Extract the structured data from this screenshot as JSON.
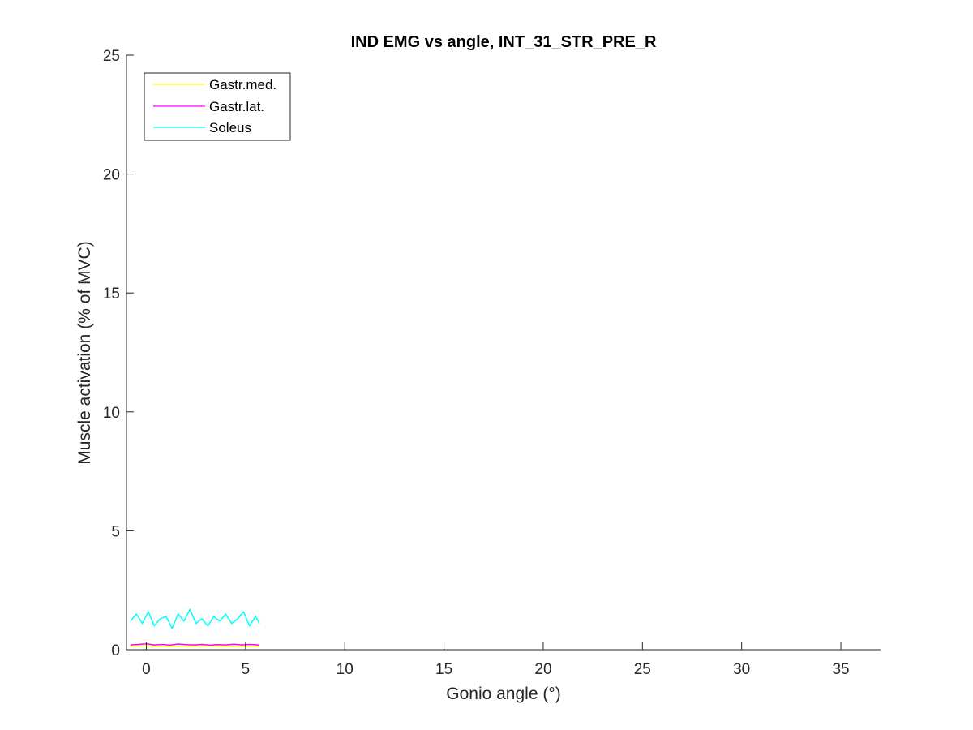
{
  "chart_data": {
    "type": "line",
    "title": "IND EMG vs angle, INT_31_STR_PRE_R",
    "xlabel": "Gonio angle (°)",
    "ylabel": "Muscle activation (% of MVC)",
    "xlim": [
      -1,
      37
    ],
    "ylim": [
      0,
      25
    ],
    "xticks": [
      0,
      5,
      10,
      15,
      20,
      25,
      30,
      35
    ],
    "yticks": [
      0,
      5,
      10,
      15,
      20,
      25
    ],
    "xtick_labels": [
      "0",
      "5",
      "10",
      "15",
      "20",
      "25",
      "30",
      "35"
    ],
    "ytick_labels": [
      "0",
      "5",
      "10",
      "15",
      "20",
      "25"
    ],
    "grid": false,
    "legend_position": "top-left",
    "series": [
      {
        "name": "Gastr.med.",
        "color": "#FFFF00",
        "x": [
          -0.8,
          0.0,
          1.0,
          2.0,
          3.0,
          4.0,
          5.0,
          5.7
        ],
        "values": [
          0.15,
          0.16,
          0.14,
          0.15,
          0.16,
          0.15,
          0.14,
          0.15
        ]
      },
      {
        "name": "Gastr.lat.",
        "color": "#FF00FF",
        "x": [
          -0.8,
          -0.4,
          0.0,
          0.4,
          0.8,
          1.2,
          1.6,
          2.0,
          2.4,
          2.8,
          3.2,
          3.6,
          4.0,
          4.4,
          4.8,
          5.2,
          5.7
        ],
        "values": [
          0.2,
          0.22,
          0.25,
          0.2,
          0.22,
          0.19,
          0.24,
          0.21,
          0.2,
          0.22,
          0.19,
          0.21,
          0.2,
          0.23,
          0.2,
          0.22,
          0.2
        ]
      },
      {
        "name": "Soleus",
        "color": "#00FFFF",
        "x": [
          -0.8,
          -0.5,
          -0.2,
          0.1,
          0.4,
          0.7,
          1.0,
          1.3,
          1.6,
          1.9,
          2.2,
          2.5,
          2.8,
          3.1,
          3.4,
          3.7,
          4.0,
          4.3,
          4.6,
          4.9,
          5.2,
          5.5,
          5.7
        ],
        "values": [
          1.2,
          1.5,
          1.1,
          1.6,
          1.0,
          1.3,
          1.4,
          0.9,
          1.5,
          1.2,
          1.7,
          1.1,
          1.3,
          1.0,
          1.4,
          1.2,
          1.5,
          1.1,
          1.3,
          1.6,
          1.0,
          1.4,
          1.1
        ]
      }
    ]
  }
}
